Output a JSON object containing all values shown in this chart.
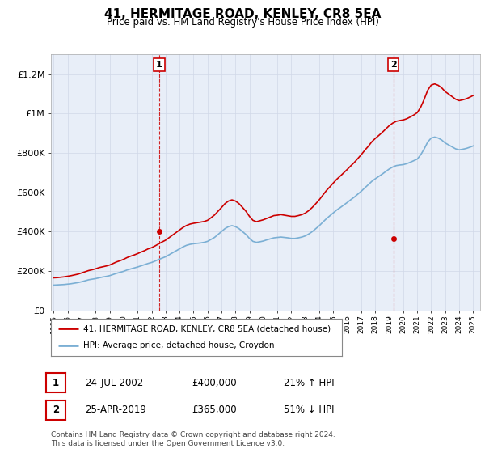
{
  "title": "41, HERMITAGE ROAD, KENLEY, CR8 5EA",
  "subtitle": "Price paid vs. HM Land Registry's House Price Index (HPI)",
  "ylim": [
    0,
    1300000
  ],
  "yticks": [
    0,
    200000,
    400000,
    600000,
    800000,
    1000000,
    1200000
  ],
  "ytick_labels": [
    "£0",
    "£200K",
    "£400K",
    "£600K",
    "£800K",
    "£1M",
    "£1.2M"
  ],
  "legend_line1": "41, HERMITAGE ROAD, KENLEY, CR8 5EA (detached house)",
  "legend_line2": "HPI: Average price, detached house, Croydon",
  "sale1_date": "24-JUL-2002",
  "sale1_price": 400000,
  "sale1_label": "21% ↑ HPI",
  "sale1_x": 2002.55,
  "sale2_date": "25-APR-2019",
  "sale2_price": 365000,
  "sale2_label": "51% ↓ HPI",
  "sale2_x": 2019.3,
  "footer": "Contains HM Land Registry data © Crown copyright and database right 2024.\nThis data is licensed under the Open Government Licence v3.0.",
  "hpi_color": "#7bafd4",
  "price_color": "#cc0000",
  "vline_color": "#cc0000",
  "grid_color": "#d0d8e8",
  "bg_plot": "#e8eef8",
  "bg_white": "#ffffff",
  "hpi_x": [
    1995.0,
    1995.25,
    1995.5,
    1995.75,
    1996.0,
    1996.25,
    1996.5,
    1996.75,
    1997.0,
    1997.25,
    1997.5,
    1997.75,
    1998.0,
    1998.25,
    1998.5,
    1998.75,
    1999.0,
    1999.25,
    1999.5,
    1999.75,
    2000.0,
    2000.25,
    2000.5,
    2000.75,
    2001.0,
    2001.25,
    2001.5,
    2001.75,
    2002.0,
    2002.25,
    2002.5,
    2002.75,
    2003.0,
    2003.25,
    2003.5,
    2003.75,
    2004.0,
    2004.25,
    2004.5,
    2004.75,
    2005.0,
    2005.25,
    2005.5,
    2005.75,
    2006.0,
    2006.25,
    2006.5,
    2006.75,
    2007.0,
    2007.25,
    2007.5,
    2007.75,
    2008.0,
    2008.25,
    2008.5,
    2008.75,
    2009.0,
    2009.25,
    2009.5,
    2009.75,
    2010.0,
    2010.25,
    2010.5,
    2010.75,
    2011.0,
    2011.25,
    2011.5,
    2011.75,
    2012.0,
    2012.25,
    2012.5,
    2012.75,
    2013.0,
    2013.25,
    2013.5,
    2013.75,
    2014.0,
    2014.25,
    2014.5,
    2014.75,
    2015.0,
    2015.25,
    2015.5,
    2015.75,
    2016.0,
    2016.25,
    2016.5,
    2016.75,
    2017.0,
    2017.25,
    2017.5,
    2017.75,
    2018.0,
    2018.25,
    2018.5,
    2018.75,
    2019.0,
    2019.25,
    2019.5,
    2019.75,
    2020.0,
    2020.25,
    2020.5,
    2020.75,
    2021.0,
    2021.25,
    2021.5,
    2021.75,
    2022.0,
    2022.25,
    2022.5,
    2022.75,
    2023.0,
    2023.25,
    2023.5,
    2023.75,
    2024.0,
    2024.25,
    2024.5,
    2024.75,
    2025.0
  ],
  "hpi_y": [
    128000,
    129000,
    130000,
    131000,
    133000,
    135000,
    138000,
    141000,
    145000,
    150000,
    155000,
    158000,
    161000,
    165000,
    169000,
    172000,
    176000,
    182000,
    188000,
    193000,
    198000,
    205000,
    210000,
    215000,
    220000,
    226000,
    232000,
    238000,
    243000,
    250000,
    258000,
    265000,
    272000,
    282000,
    292000,
    302000,
    312000,
    322000,
    330000,
    335000,
    338000,
    340000,
    342000,
    345000,
    350000,
    360000,
    370000,
    385000,
    400000,
    415000,
    425000,
    430000,
    425000,
    415000,
    400000,
    385000,
    365000,
    350000,
    345000,
    348000,
    352000,
    358000,
    363000,
    368000,
    370000,
    372000,
    370000,
    368000,
    365000,
    365000,
    368000,
    372000,
    378000,
    388000,
    400000,
    415000,
    430000,
    448000,
    465000,
    480000,
    495000,
    510000,
    522000,
    535000,
    548000,
    562000,
    575000,
    590000,
    605000,
    622000,
    638000,
    655000,
    668000,
    680000,
    692000,
    705000,
    718000,
    728000,
    735000,
    738000,
    740000,
    745000,
    752000,
    760000,
    768000,
    790000,
    820000,
    855000,
    875000,
    880000,
    875000,
    865000,
    850000,
    840000,
    830000,
    820000,
    815000,
    818000,
    822000,
    828000,
    835000
  ],
  "price_x": [
    1995.0,
    1995.25,
    1995.5,
    1995.75,
    1996.0,
    1996.25,
    1996.5,
    1996.75,
    1997.0,
    1997.25,
    1997.5,
    1997.75,
    1998.0,
    1998.25,
    1998.5,
    1998.75,
    1999.0,
    1999.25,
    1999.5,
    1999.75,
    2000.0,
    2000.25,
    2000.5,
    2000.75,
    2001.0,
    2001.25,
    2001.5,
    2001.75,
    2002.0,
    2002.25,
    2002.5,
    2002.75,
    2003.0,
    2003.25,
    2003.5,
    2003.75,
    2004.0,
    2004.25,
    2004.5,
    2004.75,
    2005.0,
    2005.25,
    2005.5,
    2005.75,
    2006.0,
    2006.25,
    2006.5,
    2006.75,
    2007.0,
    2007.25,
    2007.5,
    2007.75,
    2008.0,
    2008.25,
    2008.5,
    2008.75,
    2009.0,
    2009.25,
    2009.5,
    2009.75,
    2010.0,
    2010.25,
    2010.5,
    2010.75,
    2011.0,
    2011.25,
    2011.5,
    2011.75,
    2012.0,
    2012.25,
    2012.5,
    2012.75,
    2013.0,
    2013.25,
    2013.5,
    2013.75,
    2014.0,
    2014.25,
    2014.5,
    2014.75,
    2015.0,
    2015.25,
    2015.5,
    2015.75,
    2016.0,
    2016.25,
    2016.5,
    2016.75,
    2017.0,
    2017.25,
    2017.5,
    2017.75,
    2018.0,
    2018.25,
    2018.5,
    2018.75,
    2019.0,
    2019.25,
    2019.5,
    2019.75,
    2020.0,
    2020.25,
    2020.5,
    2020.75,
    2021.0,
    2021.25,
    2021.5,
    2021.75,
    2022.0,
    2022.25,
    2022.5,
    2022.75,
    2023.0,
    2023.25,
    2023.5,
    2023.75,
    2024.0,
    2024.25,
    2024.5,
    2024.75,
    2025.0
  ],
  "price_y": [
    165000,
    166000,
    168000,
    170000,
    173000,
    176000,
    180000,
    184000,
    190000,
    196000,
    202000,
    206000,
    211000,
    217000,
    221000,
    225000,
    230000,
    238000,
    246000,
    252000,
    259000,
    268000,
    275000,
    281000,
    288000,
    296000,
    303000,
    312000,
    318000,
    327000,
    337000,
    347000,
    356000,
    369000,
    382000,
    395000,
    408000,
    421000,
    431000,
    438000,
    442000,
    445000,
    448000,
    451000,
    457000,
    470000,
    484000,
    503000,
    522000,
    542000,
    555000,
    561000,
    555000,
    542000,
    523000,
    503000,
    477000,
    457000,
    450000,
    455000,
    460000,
    467000,
    474000,
    481000,
    483000,
    486000,
    483000,
    480000,
    477000,
    477000,
    481000,
    486000,
    494000,
    507000,
    523000,
    542000,
    562000,
    585000,
    608000,
    627000,
    647000,
    666000,
    682000,
    699000,
    716000,
    734000,
    751000,
    771000,
    791000,
    813000,
    833000,
    856000,
    873000,
    888000,
    904000,
    921000,
    938000,
    951000,
    960000,
    964000,
    967000,
    973000,
    982000,
    992000,
    1004000,
    1032000,
    1072000,
    1118000,
    1144000,
    1150000,
    1143000,
    1130000,
    1111000,
    1098000,
    1085000,
    1072000,
    1065000,
    1069000,
    1074000,
    1082000,
    1091000
  ]
}
